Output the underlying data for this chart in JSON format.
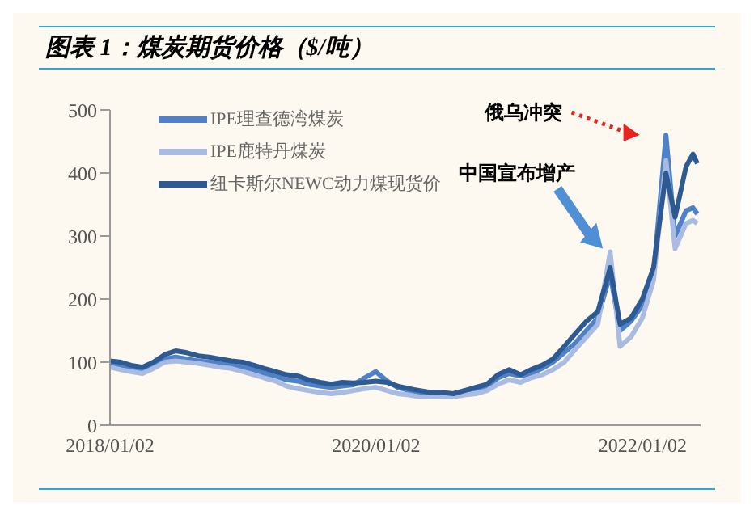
{
  "chart_data": {
    "type": "line",
    "title": "图表 1：煤炭期货价格（$/吨）",
    "x": [
      "2018-01-02",
      "2018-02-01",
      "2018-03-01",
      "2018-04-01",
      "2018-05-01",
      "2018-06-01",
      "2018-07-01",
      "2018-08-01",
      "2018-09-01",
      "2018-10-01",
      "2018-11-01",
      "2018-12-01",
      "2019-01-01",
      "2019-02-01",
      "2019-03-01",
      "2019-04-01",
      "2019-05-01",
      "2019-06-01",
      "2019-07-01",
      "2019-08-01",
      "2019-09-01",
      "2019-10-01",
      "2019-11-01",
      "2019-12-01",
      "2020-01-01",
      "2020-02-01",
      "2020-03-01",
      "2020-04-01",
      "2020-05-01",
      "2020-06-01",
      "2020-07-01",
      "2020-08-01",
      "2020-09-01",
      "2020-10-01",
      "2020-11-01",
      "2020-12-01",
      "2021-01-01",
      "2021-02-01",
      "2021-03-01",
      "2021-04-01",
      "2021-05-01",
      "2021-06-01",
      "2021-07-01",
      "2021-08-01",
      "2021-09-01",
      "2021-10-05",
      "2021-11-01",
      "2021-12-01",
      "2022-01-01",
      "2022-02-01",
      "2022-03-07",
      "2022-04-01",
      "2022-05-01",
      "2022-05-20",
      "2022-06-01"
    ],
    "series": [
      {
        "name": "IPE理查德湾煤炭",
        "color": "#4f81c7",
        "values": [
          98,
          95,
          90,
          88,
          95,
          105,
          108,
          105,
          102,
          100,
          98,
          95,
          92,
          88,
          82,
          78,
          72,
          70,
          65,
          62,
          60,
          62,
          64,
          75,
          85,
          70,
          60,
          55,
          52,
          50,
          50,
          50,
          55,
          58,
          62,
          75,
          82,
          78,
          82,
          90,
          100,
          115,
          130,
          150,
          170,
          240,
          150,
          165,
          190,
          240,
          460,
          300,
          340,
          345,
          335
        ]
      },
      {
        "name": "IPE鹿特丹煤炭",
        "color": "#a9bbe0",
        "values": [
          92,
          88,
          85,
          82,
          90,
          100,
          102,
          100,
          98,
          95,
          92,
          90,
          85,
          80,
          75,
          70,
          62,
          58,
          55,
          52,
          50,
          52,
          55,
          58,
          60,
          55,
          50,
          48,
          45,
          45,
          45,
          45,
          48,
          50,
          55,
          65,
          72,
          68,
          75,
          80,
          88,
          100,
          120,
          140,
          160,
          275,
          125,
          140,
          170,
          230,
          420,
          280,
          320,
          325,
          320
        ]
      },
      {
        "name": "纽卡斯尔NEWC动力煤现货价",
        "color": "#2e5a94",
        "values": [
          102,
          100,
          95,
          92,
          100,
          112,
          118,
          115,
          110,
          108,
          105,
          102,
          100,
          95,
          90,
          85,
          80,
          78,
          72,
          68,
          65,
          68,
          67,
          68,
          70,
          68,
          62,
          58,
          55,
          52,
          52,
          50,
          55,
          60,
          65,
          80,
          88,
          80,
          88,
          95,
          105,
          125,
          145,
          165,
          180,
          250,
          160,
          170,
          200,
          250,
          400,
          330,
          410,
          430,
          415
        ]
      }
    ],
    "xlim": [
      "2018-01-02",
      "2022-06-10"
    ],
    "xticks": [
      {
        "value": "2018-01-02",
        "label": "2018/01/02"
      },
      {
        "value": "2020-01-02",
        "label": "2020/01/02"
      },
      {
        "value": "2022-01-02",
        "label": "2022/01/02"
      }
    ],
    "ylim": [
      0,
      500
    ],
    "yticks": [
      0,
      100,
      200,
      300,
      400,
      500
    ],
    "legend": "top left",
    "grid": false,
    "annotations": [
      "俄乌冲突",
      "中国宣布增产"
    ]
  }
}
